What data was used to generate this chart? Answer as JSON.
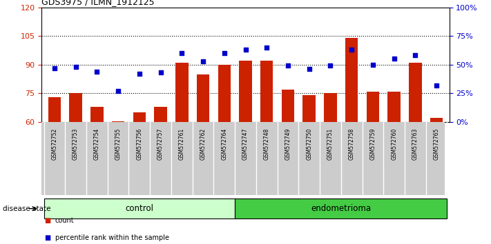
{
  "title": "GDS3975 / ILMN_1912125",
  "samples": [
    "GSM572752",
    "GSM572753",
    "GSM572754",
    "GSM572755",
    "GSM572756",
    "GSM572757",
    "GSM572761",
    "GSM572762",
    "GSM572764",
    "GSM572747",
    "GSM572748",
    "GSM572749",
    "GSM572750",
    "GSM572751",
    "GSM572758",
    "GSM572759",
    "GSM572760",
    "GSM572763",
    "GSM572765"
  ],
  "counts": [
    73,
    75,
    68,
    60.5,
    65,
    68,
    91,
    85,
    90,
    92,
    92,
    77,
    74,
    75,
    104,
    76,
    76,
    91,
    62
  ],
  "percentiles": [
    47,
    48,
    44,
    27,
    42,
    43,
    60,
    53,
    60,
    63,
    65,
    49,
    46,
    49,
    63,
    50,
    55,
    58,
    32
  ],
  "control_count": 9,
  "endometrioma_count": 10,
  "ylim_left": [
    60,
    120
  ],
  "ylim_right": [
    0,
    100
  ],
  "yticks_left": [
    60,
    75,
    90,
    105,
    120
  ],
  "yticks_right": [
    0,
    25,
    50,
    75,
    100
  ],
  "ytick_labels_right": [
    "0%",
    "25%",
    "50%",
    "75%",
    "100%"
  ],
  "bar_color": "#cc2200",
  "dot_color": "#0000cc",
  "control_bg": "#ccffcc",
  "endo_bg": "#44cc44",
  "tick_bg": "#cccccc",
  "ylabel_left_color": "#cc2200",
  "ylabel_right_color": "#0000cc",
  "legend_bar_label": "count",
  "legend_dot_label": "percentile rank within the sample",
  "group_label_control": "control",
  "group_label_endo": "endometrioma",
  "disease_state_label": "disease state"
}
